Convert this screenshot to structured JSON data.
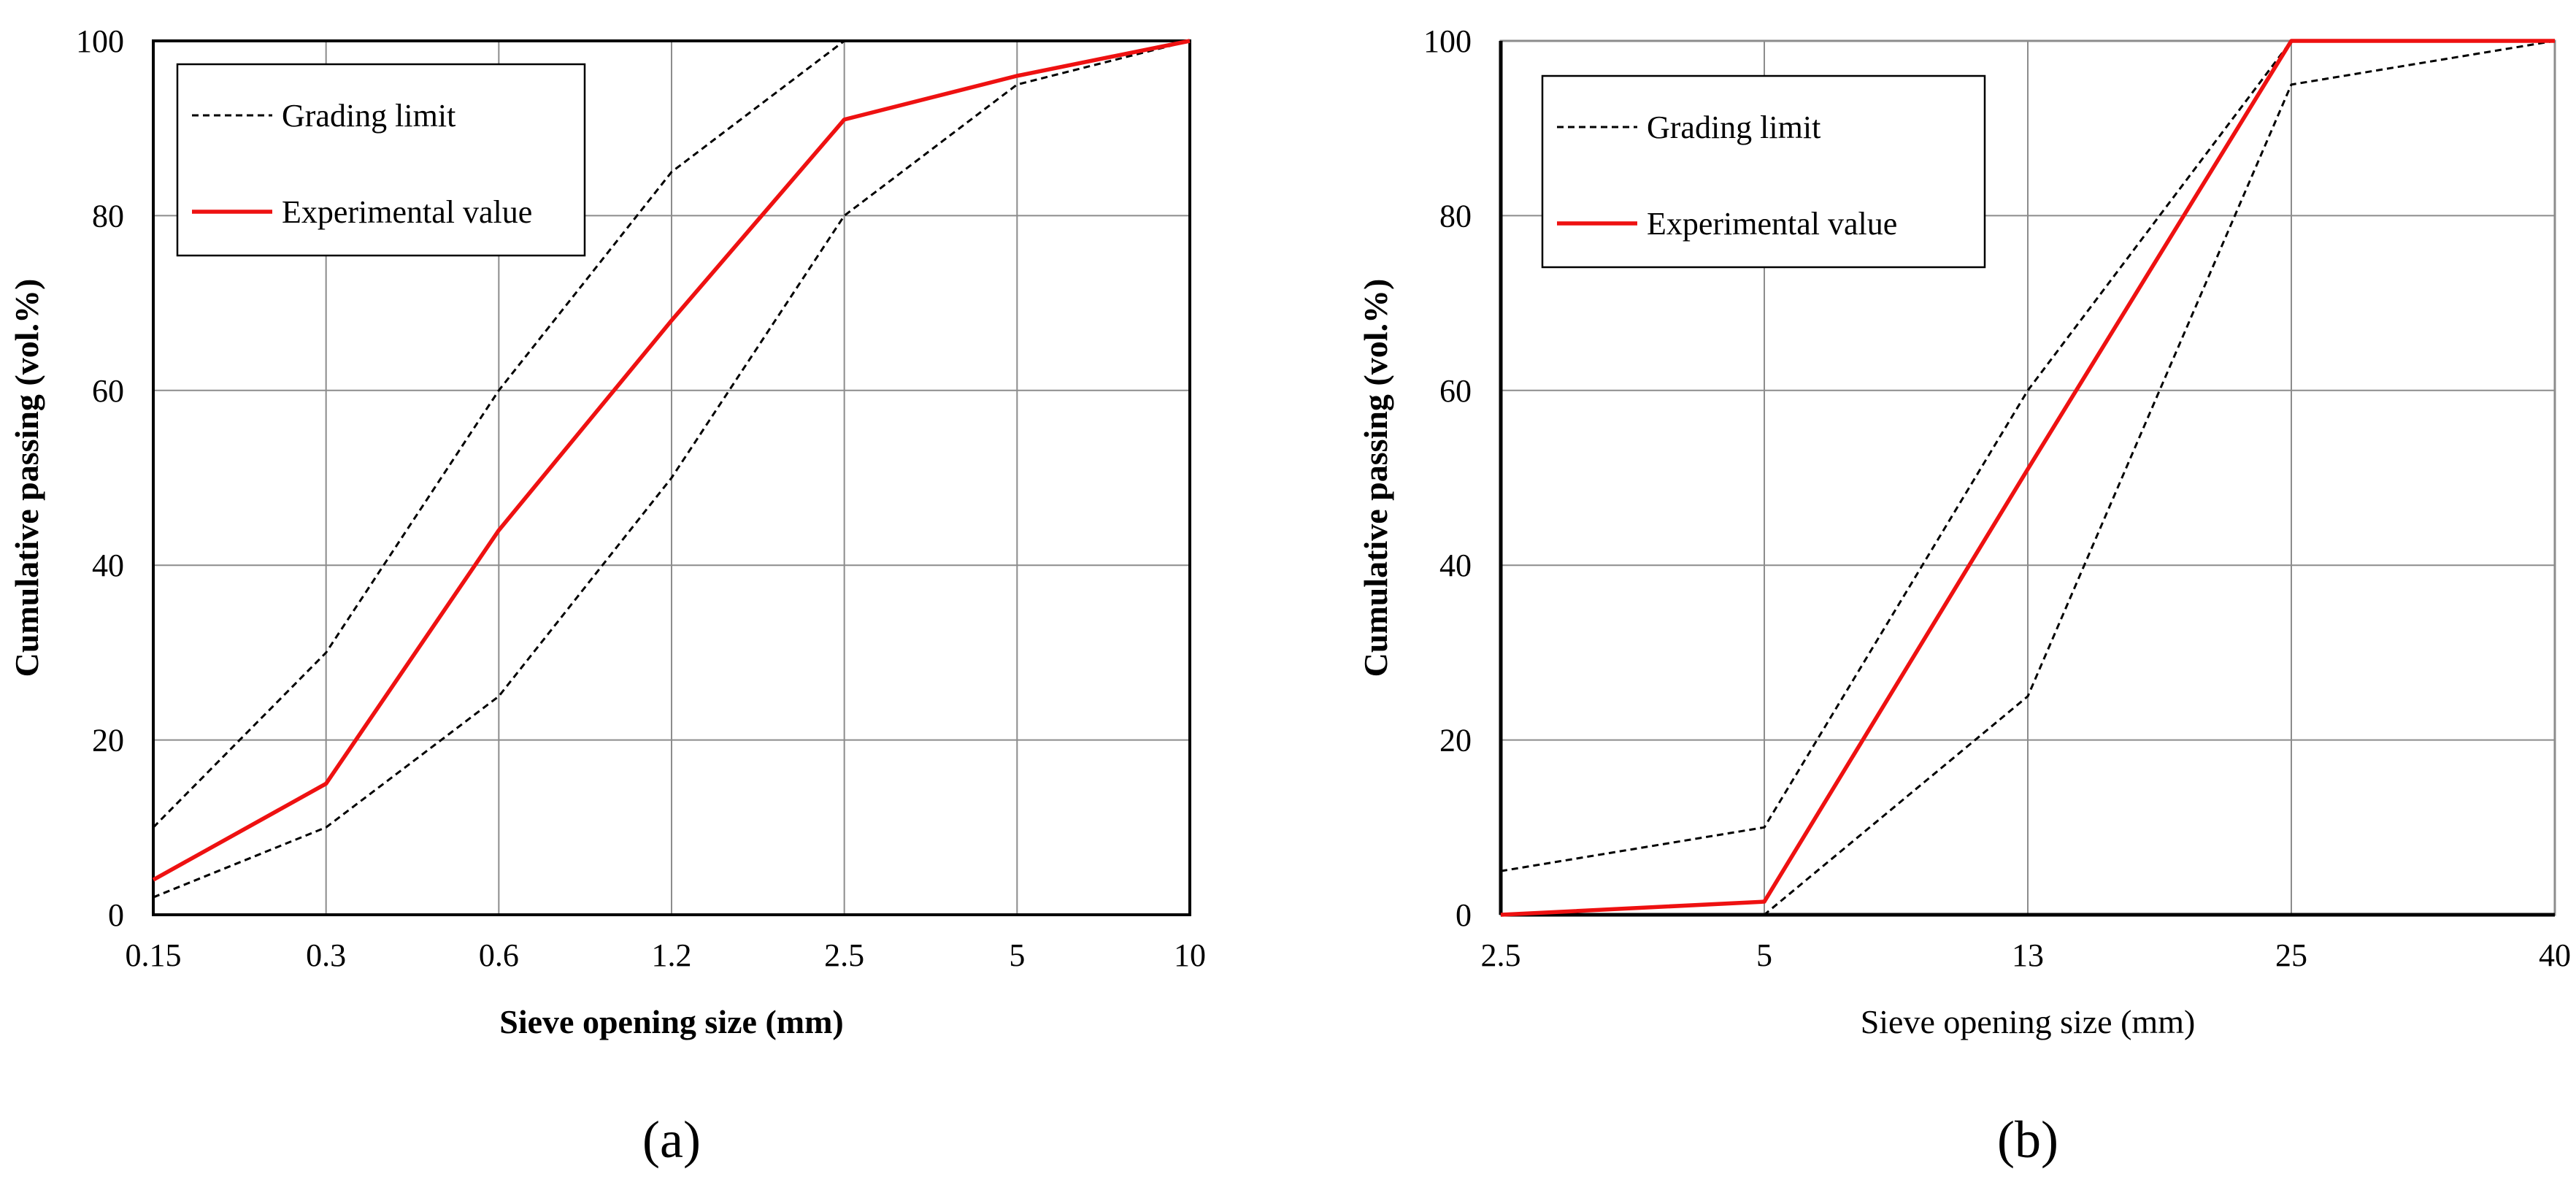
{
  "chart_data": [
    {
      "panel_label": "(a)",
      "type": "line",
      "title": "",
      "xlabel": "Sieve opening size (mm)",
      "ylabel": "Cumulative passing (vol.%)",
      "x_axis_style": "categorical",
      "categories": [
        "0.15",
        "0.3",
        "0.6",
        "1.2",
        "2.5",
        "5",
        "10"
      ],
      "ylim": [
        0,
        100
      ],
      "yticks": [
        0,
        20,
        40,
        60,
        80,
        100
      ],
      "grid": true,
      "legend_position": "top-left",
      "legend": [
        {
          "label": "Grading limit",
          "style": "dashed",
          "color": "#000000"
        },
        {
          "label": "Experimental value",
          "style": "solid",
          "color": "#ee1111"
        }
      ],
      "series": [
        {
          "role": "limit-upper",
          "style": "dashed",
          "color": "#000000",
          "points": [
            [
              0,
              10
            ],
            [
              1,
              30
            ],
            [
              2,
              60
            ],
            [
              3,
              85
            ],
            [
              4,
              100
            ],
            [
              5,
              100
            ],
            [
              6,
              100
            ]
          ]
        },
        {
          "role": "limit-lower",
          "style": "dashed",
          "color": "#000000",
          "points": [
            [
              0,
              2
            ],
            [
              1,
              10
            ],
            [
              2,
              25
            ],
            [
              3,
              50
            ],
            [
              4,
              80
            ],
            [
              5,
              95
            ],
            [
              6,
              100
            ]
          ]
        },
        {
          "role": "experimental",
          "style": "solid",
          "color": "#ee1111",
          "points": [
            [
              0,
              4
            ],
            [
              1,
              15
            ],
            [
              2,
              44
            ],
            [
              3,
              68
            ],
            [
              4,
              91
            ],
            [
              5,
              96
            ],
            [
              6,
              100
            ]
          ]
        }
      ]
    },
    {
      "panel_label": "(b)",
      "type": "line",
      "title": "",
      "xlabel": "Sieve opening size (mm)",
      "ylabel": "Cumulative passing (vol.%)",
      "x_axis_style": "categorical",
      "categories": [
        "2.5",
        "5",
        "13",
        "25",
        "40"
      ],
      "ylim": [
        0,
        100
      ],
      "yticks": [
        0,
        20,
        40,
        60,
        80,
        100
      ],
      "grid": true,
      "legend_position": "top-left",
      "legend": [
        {
          "label": "Grading limit",
          "style": "dashed",
          "color": "#000000"
        },
        {
          "label": "Experimental value",
          "style": "solid",
          "color": "#ee1111"
        }
      ],
      "series": [
        {
          "role": "limit-upper",
          "style": "dashed",
          "color": "#000000",
          "points": [
            [
              0,
              5
            ],
            [
              1,
              10
            ],
            [
              2,
              60
            ],
            [
              3,
              100
            ],
            [
              4,
              100
            ]
          ]
        },
        {
          "role": "limit-lower",
          "style": "dashed",
          "color": "#000000",
          "points": [
            [
              0,
              0
            ],
            [
              1,
              0
            ],
            [
              2,
              25
            ],
            [
              3,
              95
            ],
            [
              4,
              100
            ]
          ]
        },
        {
          "role": "experimental",
          "style": "solid",
          "color": "#ee1111",
          "points": [
            [
              0,
              0
            ],
            [
              1,
              1.5
            ],
            [
              2,
              51
            ],
            [
              3,
              100
            ],
            [
              4,
              100
            ]
          ]
        }
      ]
    }
  ]
}
